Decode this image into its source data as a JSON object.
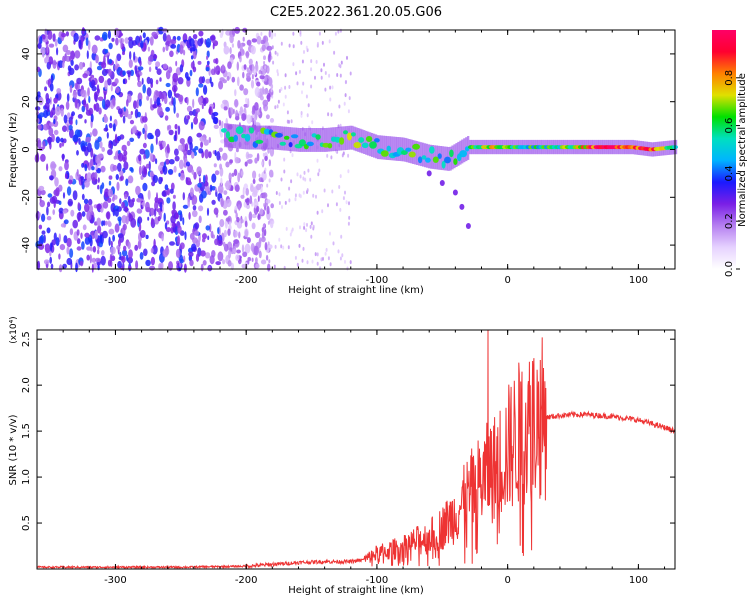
{
  "title": "C2E5.2022.361.20.05.G06",
  "chart_data": [
    {
      "type": "heatmap",
      "xlabel": "Height of straight line (km)",
      "ylabel": "Frequency (Hz)",
      "xlim": [
        -360,
        128
      ],
      "ylim": [
        -50,
        50
      ],
      "xticks": [
        -300,
        -200,
        -100,
        0,
        100
      ],
      "yticks": [
        -40,
        -20,
        0,
        20,
        40
      ],
      "colorbar": {
        "label": "Normalized spectral amplitude",
        "range": [
          0,
          1
        ],
        "ticks": [
          "0.0",
          "0.2",
          "0.4",
          "0.6",
          "0.8"
        ],
        "colors": [
          "#ffffff",
          "#e6d2ff",
          "#b57ff0",
          "#7a1fe6",
          "#1a1aff",
          "#00b4ff",
          "#00e0c0",
          "#00e000",
          "#e0e000",
          "#ff8000",
          "#ff0030",
          "#ff0066"
        ]
      },
      "signal_track": [
        {
          "x": -218,
          "f": 6,
          "amp": 0.45
        },
        {
          "x": -200,
          "f": 5,
          "amp": 0.5
        },
        {
          "x": -180,
          "f": 5,
          "amp": 0.55
        },
        {
          "x": -160,
          "f": 4,
          "amp": 0.5
        },
        {
          "x": -140,
          "f": 4,
          "amp": 0.55
        },
        {
          "x": -120,
          "f": 5,
          "amp": 0.6
        },
        {
          "x": -100,
          "f": 1,
          "amp": 0.55
        },
        {
          "x": -80,
          "f": 0,
          "amp": 0.6
        },
        {
          "x": -60,
          "f": -3,
          "amp": 0.55
        },
        {
          "x": -45,
          "f": -4,
          "amp": 0.5
        },
        {
          "x": -30,
          "f": 1,
          "amp": 0.6
        },
        {
          "x": -10,
          "f": 1,
          "amp": 0.7
        },
        {
          "x": 10,
          "f": 1,
          "amp": 0.55
        },
        {
          "x": 40,
          "f": 1,
          "amp": 0.6
        },
        {
          "x": 75,
          "f": 1,
          "amp": 0.95
        },
        {
          "x": 95,
          "f": 1,
          "amp": 0.9
        },
        {
          "x": 110,
          "f": 0,
          "amp": 0.9
        },
        {
          "x": 128,
          "f": 1,
          "amp": 0.6
        }
      ],
      "tail": [
        {
          "x": -60,
          "f": -10
        },
        {
          "x": -50,
          "f": -14
        },
        {
          "x": -40,
          "f": -18
        },
        {
          "x": -35,
          "f": -24
        },
        {
          "x": -30,
          "f": -32
        }
      ]
    },
    {
      "type": "line",
      "xlabel": "Height of straight line (km)",
      "ylabel": "SNR (10 * v/v)",
      "scale_label": "(x10⁴)",
      "xlim": [
        -360,
        128
      ],
      "ylim": [
        0,
        2.6
      ],
      "xticks": [
        -300,
        -200,
        -100,
        0,
        100
      ],
      "yticks": [
        0.5,
        1.0,
        1.5,
        2.0,
        2.5
      ],
      "color": "#ee3333",
      "series": [
        {
          "x": [
            -360,
            -300,
            -250,
            -200,
            -180,
            -160,
            -140,
            -120,
            -110,
            -100,
            -90,
            -80,
            -70,
            -60,
            -50,
            -40,
            -30,
            -25,
            -20,
            -15,
            -10,
            -5,
            0,
            5,
            10,
            15,
            20,
            25,
            30,
            40,
            50,
            60,
            70,
            80,
            90,
            100,
            110,
            120,
            128
          ],
          "y": [
            0.02,
            0.02,
            0.02,
            0.03,
            0.05,
            0.07,
            0.08,
            0.08,
            0.1,
            0.17,
            0.2,
            0.25,
            0.3,
            0.35,
            0.45,
            0.6,
            0.8,
            0.9,
            0.95,
            1.05,
            1.1,
            1.2,
            1.3,
            1.4,
            1.5,
            1.55,
            1.6,
            1.63,
            1.65,
            1.67,
            1.68,
            1.68,
            1.67,
            1.66,
            1.64,
            1.62,
            1.58,
            1.54,
            1.5
          ]
        }
      ],
      "spikes": [
        {
          "x": -15,
          "y": 2.6
        }
      ]
    }
  ]
}
